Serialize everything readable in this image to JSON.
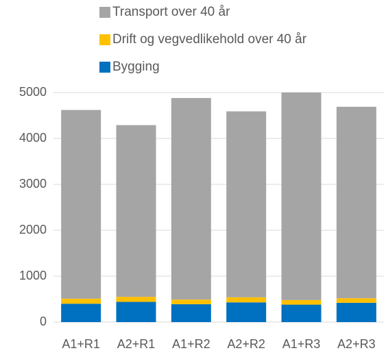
{
  "chart_data": {
    "type": "stacked_bar",
    "categories": [
      "A1+R1",
      "A2+R1",
      "A1+R2",
      "A2+R2",
      "A1+R3",
      "A2+R3"
    ],
    "series": [
      {
        "name": "Bygging",
        "color": "#0070c0",
        "values": [
          400,
          440,
          390,
          430,
          380,
          420
        ]
      },
      {
        "name": "Drift og vegvedlikehold over 40 år",
        "color": "#ffc000",
        "values": [
          110,
          110,
          100,
          110,
          100,
          100
        ]
      },
      {
        "name": "Transport over 40 år",
        "color": "#a5a5a5",
        "values": [
          4110,
          3740,
          4390,
          4050,
          4520,
          4170
        ]
      }
    ],
    "ylim": [
      0,
      5000
    ],
    "yticks": [
      0,
      1000,
      2000,
      3000,
      4000,
      5000
    ],
    "grid": true,
    "legend": "top"
  }
}
